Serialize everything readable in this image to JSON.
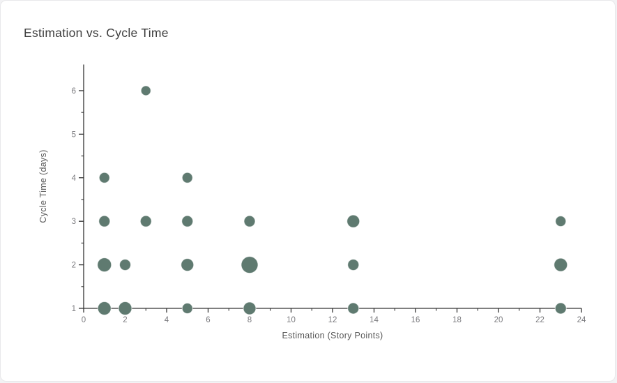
{
  "card": {
    "background": "#ffffff",
    "border_color": "#e8e8ea"
  },
  "chart_data": {
    "type": "scatter",
    "title": "Estimation vs. Cycle Time",
    "xlabel": "Estimation (Story Points)",
    "ylabel": "Cycle Time (days)",
    "xlim": [
      0,
      24
    ],
    "ylim": [
      1,
      6.6
    ],
    "x_ticks_major": [
      0,
      2,
      4,
      6,
      8,
      10,
      12,
      14,
      16,
      18,
      20,
      22,
      24
    ],
    "x_ticks_minor": [
      1,
      3,
      5,
      7,
      9,
      11,
      13,
      15,
      17,
      19,
      21,
      23
    ],
    "y_ticks_major": [
      1,
      2,
      3,
      4,
      5,
      6
    ],
    "y_ticks_minor": [
      1.5,
      2.5,
      3.5,
      4.5,
      5.5
    ],
    "grid": false,
    "legend": "none",
    "point_color": "#5f7a70",
    "axis_color": "#333333",
    "tick_label_color": "#7a7a7e",
    "points": [
      {
        "x": 3,
        "y": 6,
        "r": 7
      },
      {
        "x": 1,
        "y": 4,
        "r": 7.5
      },
      {
        "x": 5,
        "y": 4,
        "r": 7.5
      },
      {
        "x": 1,
        "y": 3,
        "r": 8
      },
      {
        "x": 3,
        "y": 3,
        "r": 8
      },
      {
        "x": 5,
        "y": 3,
        "r": 8
      },
      {
        "x": 8,
        "y": 3,
        "r": 8
      },
      {
        "x": 13,
        "y": 3,
        "r": 9
      },
      {
        "x": 23,
        "y": 3,
        "r": 7.5
      },
      {
        "x": 1,
        "y": 2,
        "r": 10
      },
      {
        "x": 2,
        "y": 2,
        "r": 8
      },
      {
        "x": 5,
        "y": 2,
        "r": 9
      },
      {
        "x": 8,
        "y": 2,
        "r": 12
      },
      {
        "x": 13,
        "y": 2,
        "r": 8
      },
      {
        "x": 23,
        "y": 2,
        "r": 9.5
      },
      {
        "x": 1,
        "y": 1,
        "r": 9.5
      },
      {
        "x": 2,
        "y": 1,
        "r": 9.5
      },
      {
        "x": 5,
        "y": 1,
        "r": 7.5
      },
      {
        "x": 8,
        "y": 1,
        "r": 9
      },
      {
        "x": 13,
        "y": 1,
        "r": 8
      },
      {
        "x": 23,
        "y": 1,
        "r": 8
      }
    ]
  }
}
